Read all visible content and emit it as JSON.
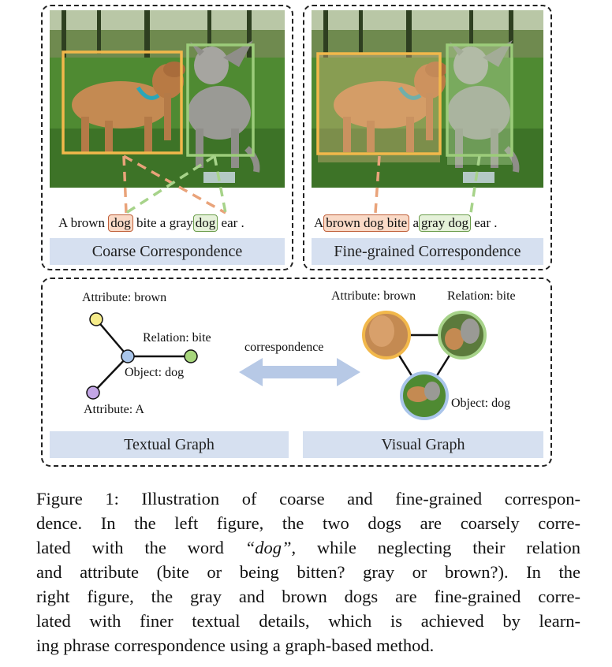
{
  "top_left": {
    "sentence_words": [
      "A brown",
      "dog",
      "bite a gray",
      "dog",
      "ear ."
    ],
    "bar_label": "Coarse Correspondence"
  },
  "top_right": {
    "sentence_words": [
      "A",
      "brown dog bite",
      "a",
      "gray dog",
      "ear ."
    ],
    "bar_label": "Fine-grained Correspondence"
  },
  "textual_graph": {
    "attr_brown": "Attribute: brown",
    "relation_bite": "Relation: bite",
    "object_dog": "Object: dog",
    "attr_a": "Attribute: A",
    "bar_label": "Textual Graph"
  },
  "arrow_label": "correspondence",
  "visual_graph": {
    "attr_brown": "Attribute: brown",
    "relation_bite": "Relation: bite",
    "object_dog": "Object: dog",
    "bar_label": "Visual Graph"
  },
  "colors": {
    "orange_box": "#f2b84b",
    "green_box": "#9ccc7a",
    "orange_dash": "#e9a37a",
    "green_dash": "#a7d38a",
    "bar_bg": "#d6e0f0",
    "node_yellow": "#f6ec8a",
    "node_green": "#a7d67c",
    "node_blue": "#a9c5ea",
    "node_purple": "#c3a6e6",
    "arrow": "#b7c9e6"
  },
  "caption": {
    "lines": [
      "Figure 1: Illustration of coarse and fine-grained correspon-",
      "dence.  In the left figure, the two dogs are coarsely corre-",
      "lated with the word ",
      "and attribute (bite or being bitten?  gray or brown?).  In the",
      "right figure, the gray and brown dogs are fine-grained corre-",
      "lated with finer textual details, which is achieved by learn-",
      "ing phrase correspondence using a graph-based method."
    ],
    "quoted_word": "“dog”",
    "line3_tail": ", while neglecting their relation"
  }
}
